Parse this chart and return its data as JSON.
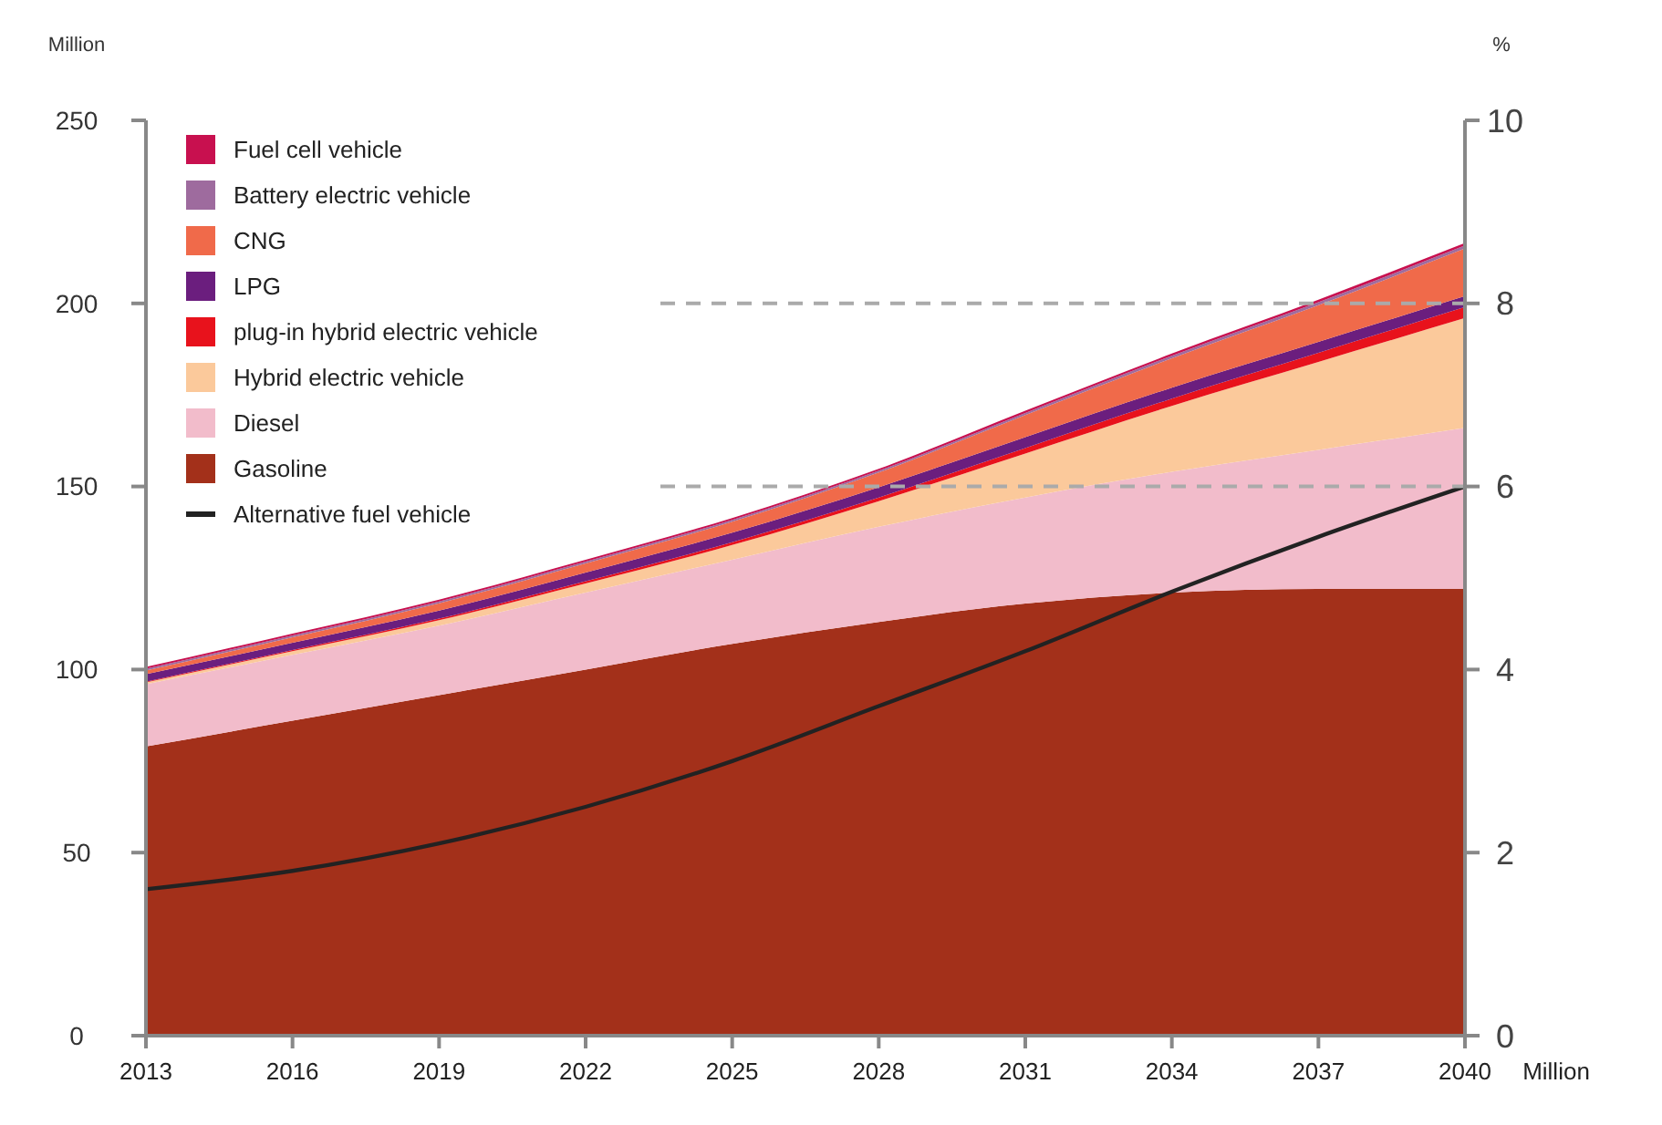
{
  "chart_data": {
    "type": "area",
    "stacked": true,
    "xlabel": "Million",
    "ylabel": "Million",
    "y2label": "%",
    "x": [
      2013,
      2016,
      2019,
      2022,
      2025,
      2028,
      2031,
      2034,
      2037,
      2040
    ],
    "xlim": [
      2013,
      2040
    ],
    "xticks": [
      2013,
      2016,
      2019,
      2022,
      2025,
      2028,
      2031,
      2034,
      2037,
      2040
    ],
    "ylim": [
      0,
      250
    ],
    "yticks": [
      0,
      50,
      100,
      150,
      200,
      250
    ],
    "y2lim": [
      0,
      10
    ],
    "y2ticks": [
      0,
      2,
      4,
      6,
      8,
      10
    ],
    "grid": false,
    "legend": "top left",
    "series": [
      {
        "name": "Gasoline",
        "color": "#a3301a",
        "values": [
          79,
          86,
          93,
          100,
          107,
          113,
          118,
          121,
          122,
          122
        ]
      },
      {
        "name": "Diesel",
        "color": "#f2bccb",
        "values": [
          17,
          18,
          19,
          21,
          23,
          26,
          29,
          33,
          38,
          44
        ]
      },
      {
        "name": "Hybrid electric vehicle",
        "color": "#fbc99b",
        "values": [
          0.5,
          1,
          1.5,
          2.5,
          4,
          7,
          12,
          18,
          24,
          30
        ]
      },
      {
        "name": "plug-in hybrid electric vehicle",
        "color": "#e8121c",
        "values": [
          0.2,
          0.3,
          0.4,
          0.6,
          0.8,
          1,
          1.5,
          2,
          2.5,
          3
        ]
      },
      {
        "name": "LPG",
        "color": "#6b1e7e",
        "values": [
          2,
          2,
          2.2,
          2.4,
          2.6,
          2.8,
          3,
          3,
          3,
          3
        ]
      },
      {
        "name": "CNG",
        "color": "#f06a4a",
        "values": [
          1,
          1.5,
          2,
          2.5,
          3,
          4,
          6,
          8,
          10,
          13
        ]
      },
      {
        "name": "Battery electric vehicle",
        "color": "#9e6b9e",
        "values": [
          0.5,
          0.5,
          0.5,
          0.5,
          0.5,
          0.5,
          0.6,
          0.7,
          0.8,
          0.8
        ]
      },
      {
        "name": "Fuel cell vehicle",
        "color": "#c8104f",
        "values": [
          0.5,
          0.5,
          0.5,
          0.5,
          0.5,
          0.5,
          0.6,
          0.6,
          0.7,
          0.7
        ]
      },
      {
        "name": "Alternative fuel vehicle",
        "type": "line",
        "axis": "y2",
        "color": "#222222",
        "line_style": "solid",
        "values": [
          1.6,
          1.8,
          2.1,
          2.5,
          3.0,
          3.6,
          4.2,
          4.85,
          5.45,
          6.0
        ]
      }
    ],
    "ref_lines": [
      {
        "axis": "y",
        "value": 200,
        "label": null,
        "color": "#aaaaaa",
        "line_style": "dashed"
      },
      {
        "axis": "y",
        "value": 150,
        "label": null,
        "color": "#aaaaaa",
        "line_style": "dashed"
      }
    ]
  }
}
